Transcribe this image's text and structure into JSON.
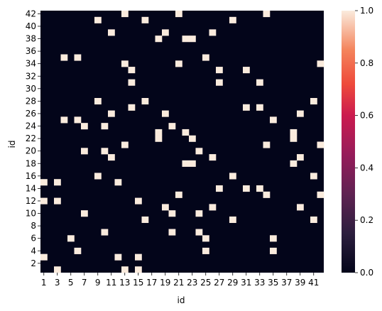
{
  "chart_data": {
    "type": "heatmap",
    "title": "",
    "xlabel": "id",
    "ylabel": "id",
    "x_range": [
      1,
      42
    ],
    "y_range": [
      1,
      42
    ],
    "x_tick_labels": [
      "1",
      "3",
      "5",
      "7",
      "9",
      "11",
      "13",
      "15",
      "17",
      "19",
      "21",
      "23",
      "25",
      "27",
      "29",
      "31",
      "33",
      "35",
      "37",
      "39",
      "41"
    ],
    "y_tick_labels": [
      "2",
      "4",
      "6",
      "8",
      "10",
      "12",
      "14",
      "16",
      "18",
      "20",
      "22",
      "24",
      "26",
      "28",
      "30",
      "32",
      "34",
      "36",
      "38",
      "40",
      "42"
    ],
    "value_range": [
      0,
      1
    ],
    "colorbar": {
      "ticks": [
        "0.0",
        "0.2",
        "0.4",
        "0.6",
        "0.8",
        "1.0"
      ],
      "low_color": "#03051a",
      "high_color": "#faebdd"
    },
    "cells_equal_1": [
      [
        13,
        42
      ],
      [
        21,
        42
      ],
      [
        34,
        42
      ],
      [
        9,
        41
      ],
      [
        16,
        41
      ],
      [
        29,
        41
      ],
      [
        11,
        39
      ],
      [
        19,
        39
      ],
      [
        26,
        39
      ],
      [
        18,
        38
      ],
      [
        22,
        38
      ],
      [
        23,
        38
      ],
      [
        4,
        35
      ],
      [
        6,
        35
      ],
      [
        25,
        35
      ],
      [
        13,
        34
      ],
      [
        21,
        34
      ],
      [
        42,
        34
      ],
      [
        14,
        33
      ],
      [
        27,
        33
      ],
      [
        31,
        33
      ],
      [
        14,
        31
      ],
      [
        27,
        31
      ],
      [
        33,
        31
      ],
      [
        9,
        28
      ],
      [
        16,
        28
      ],
      [
        41,
        28
      ],
      [
        14,
        27
      ],
      [
        31,
        27
      ],
      [
        33,
        27
      ],
      [
        11,
        26
      ],
      [
        19,
        26
      ],
      [
        39,
        26
      ],
      [
        4,
        25
      ],
      [
        6,
        25
      ],
      [
        35,
        25
      ],
      [
        7,
        24
      ],
      [
        10,
        24
      ],
      [
        20,
        24
      ],
      [
        18,
        23
      ],
      [
        22,
        23
      ],
      [
        38,
        23
      ],
      [
        18,
        22
      ],
      [
        23,
        22
      ],
      [
        38,
        22
      ],
      [
        13,
        21
      ],
      [
        34,
        21
      ],
      [
        42,
        21
      ],
      [
        7,
        20
      ],
      [
        10,
        20
      ],
      [
        24,
        20
      ],
      [
        11,
        19
      ],
      [
        26,
        19
      ],
      [
        39,
        19
      ],
      [
        22,
        18
      ],
      [
        23,
        18
      ],
      [
        38,
        18
      ],
      [
        9,
        16
      ],
      [
        29,
        16
      ],
      [
        41,
        16
      ],
      [
        1,
        15
      ],
      [
        3,
        15
      ],
      [
        12,
        15
      ],
      [
        27,
        14
      ],
      [
        31,
        14
      ],
      [
        33,
        14
      ],
      [
        21,
        13
      ],
      [
        34,
        13
      ],
      [
        42,
        13
      ],
      [
        1,
        12
      ],
      [
        3,
        12
      ],
      [
        15,
        12
      ],
      [
        19,
        11
      ],
      [
        26,
        11
      ],
      [
        39,
        11
      ],
      [
        7,
        10
      ],
      [
        20,
        10
      ],
      [
        24,
        10
      ],
      [
        16,
        9
      ],
      [
        29,
        9
      ],
      [
        41,
        9
      ],
      [
        10,
        7
      ],
      [
        20,
        7
      ],
      [
        24,
        7
      ],
      [
        5,
        6
      ],
      [
        25,
        6
      ],
      [
        35,
        6
      ],
      [
        6,
        4
      ],
      [
        25,
        4
      ],
      [
        35,
        4
      ],
      [
        1,
        3
      ],
      [
        12,
        3
      ],
      [
        15,
        3
      ],
      [
        3,
        1
      ],
      [
        13,
        1
      ],
      [
        15,
        1
      ]
    ]
  }
}
